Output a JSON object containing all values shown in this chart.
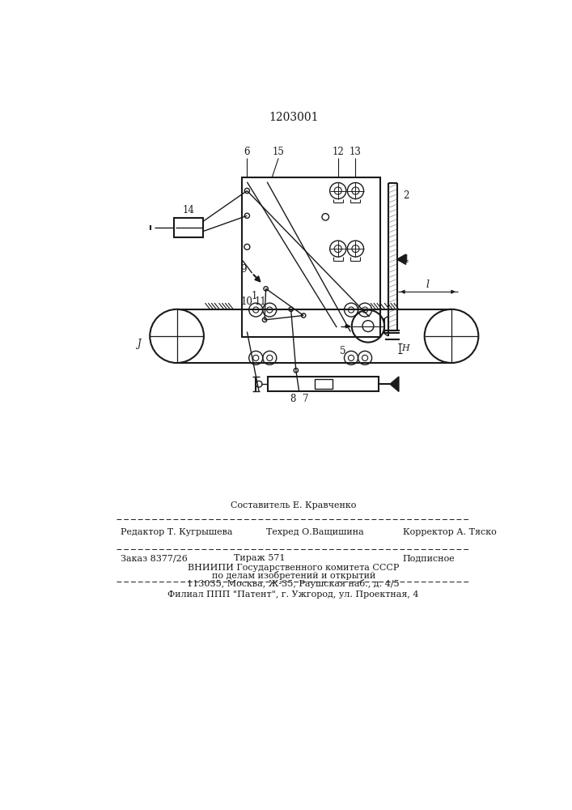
{
  "title": "1203001",
  "bg_color": "#ffffff",
  "line_color": "#1a1a1a",
  "footer_line1_center_top": "Составитель Е. Кравченко",
  "footer_line1_left": "Редактор Т. Кугрышева",
  "footer_line1_center": "Техред О.Ващишина",
  "footer_line1_right": "Корректор А. Тяско",
  "footer_line2_left": "Заказ 8377/26",
  "footer_line2_center": "Тираж 571",
  "footer_line2_right": "Подписное",
  "footer_line3": "ВНИИПИ Государственного комитета СССР",
  "footer_line4": "по делам изобретений и открытий",
  "footer_line5": "113035, Москва, Ж-35, Раушская наб., д. 4/5",
  "footer_line6": "Филиал ППП \"Патент\", г. Ужгород, ул. Проектная, 4",
  "lfs": 8.5
}
